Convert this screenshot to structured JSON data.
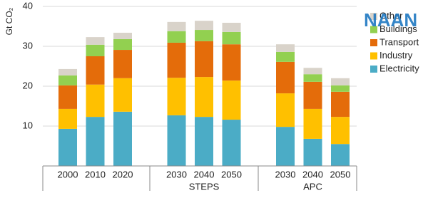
{
  "chart_data": {
    "type": "stacked_bar",
    "y_label": "Gt CO₂",
    "watermark": "NAAN",
    "categories": [
      "2000",
      "2010",
      "2020",
      "2030",
      "2040",
      "2050",
      "2030",
      "2040",
      "2050"
    ],
    "category_groups": [
      null,
      null,
      null,
      "STEPS",
      "STEPS",
      "STEPS",
      "APC",
      "APC",
      "APC"
    ],
    "series": [
      {
        "name": "Electricity",
        "color": "#4bacc6",
        "values": [
          9.3,
          12.3,
          13.6,
          12.7,
          12.3,
          11.6,
          9.8,
          6.8,
          5.5
        ]
      },
      {
        "name": "Industry",
        "color": "#ffc000",
        "values": [
          5.0,
          8.1,
          8.4,
          9.4,
          10.0,
          9.8,
          8.4,
          7.5,
          6.8
        ]
      },
      {
        "name": "Transport",
        "color": "#e46c0a",
        "values": [
          5.9,
          7.1,
          7.1,
          8.8,
          9.0,
          9.1,
          7.9,
          6.8,
          6.3
        ]
      },
      {
        "name": "Buildings",
        "color": "#92d050",
        "values": [
          2.5,
          2.9,
          2.7,
          2.9,
          2.8,
          3.1,
          2.5,
          1.9,
          1.6
        ]
      },
      {
        "name": "Other",
        "color": "#d9d3ca",
        "values": [
          1.6,
          1.9,
          1.6,
          2.3,
          2.3,
          2.3,
          1.9,
          1.6,
          1.8
        ]
      }
    ],
    "ylim": [
      0,
      40
    ],
    "yticks": [
      10,
      20,
      30,
      40
    ],
    "grid": true,
    "legend": "right"
  }
}
